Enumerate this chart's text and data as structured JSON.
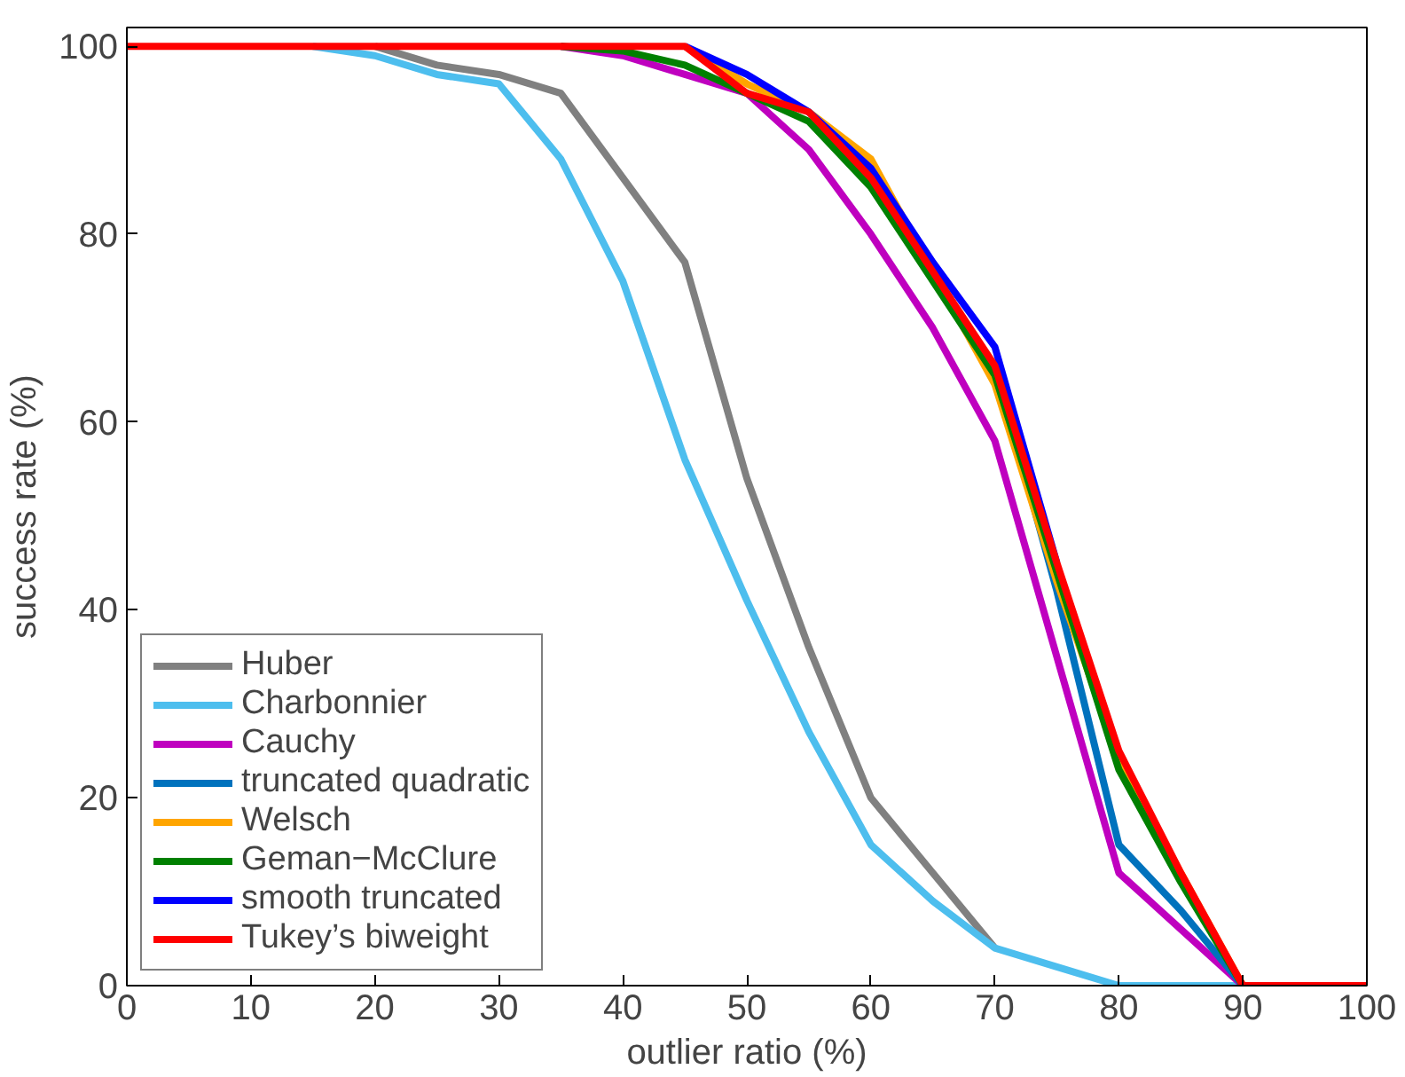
{
  "chart_data": {
    "type": "line",
    "xlabel": "outlier ratio (%)",
    "ylabel": "success rate (%)",
    "x": [
      0,
      5,
      10,
      15,
      20,
      25,
      30,
      35,
      40,
      45,
      50,
      55,
      60,
      65,
      70,
      75,
      80,
      85,
      90,
      95,
      100
    ],
    "series": [
      {
        "name": "Huber",
        "color": "#808080",
        "values": [
          null,
          null,
          null,
          null,
          100,
          98,
          97,
          95,
          86,
          77,
          54,
          36,
          20,
          12,
          4,
          null,
          null,
          null,
          null,
          null,
          null
        ]
      },
      {
        "name": "Charbonnier",
        "color": "#4dbeee",
        "values": [
          null,
          null,
          null,
          100,
          99,
          97,
          96,
          88,
          75,
          56,
          41,
          27,
          15,
          9,
          4,
          2,
          0,
          0,
          0,
          null,
          null
        ]
      },
      {
        "name": "Cauchy",
        "color": "#bf00bf",
        "values": [
          null,
          null,
          null,
          null,
          null,
          null,
          null,
          100,
          99,
          97,
          95,
          89,
          80,
          70,
          58,
          35,
          12,
          6,
          0,
          null,
          null
        ]
      },
      {
        "name": "truncated quadratic",
        "color": "#0072bd",
        "values": [
          null,
          null,
          null,
          null,
          null,
          null,
          null,
          null,
          null,
          null,
          null,
          null,
          null,
          null,
          66,
          42,
          15,
          8,
          0,
          null,
          null
        ]
      },
      {
        "name": "Welsch",
        "color": "#ffa500",
        "values": [
          null,
          null,
          null,
          null,
          null,
          null,
          null,
          null,
          null,
          100,
          96,
          93,
          88,
          76,
          64,
          43,
          24,
          12,
          0,
          null,
          null
        ]
      },
      {
        "name": "Geman−McClure",
        "color": "#008000",
        "values": [
          null,
          null,
          null,
          null,
          null,
          null,
          null,
          100,
          99.5,
          98,
          95,
          92,
          85,
          75,
          65,
          44,
          23,
          11,
          0,
          null,
          null
        ]
      },
      {
        "name": "smooth truncated",
        "color": "#0000ff",
        "values": [
          null,
          null,
          null,
          null,
          null,
          null,
          null,
          null,
          null,
          100,
          97,
          93,
          87,
          77,
          68,
          45,
          null,
          null,
          null,
          null,
          null
        ]
      },
      {
        "name": "Tukey’s biweight",
        "color": "#ff0000",
        "values": [
          100,
          100,
          100,
          100,
          100,
          100,
          100,
          100,
          100,
          100,
          95,
          93,
          86,
          76,
          66,
          45,
          25,
          12,
          0,
          0,
          0
        ]
      }
    ],
    "xlim": [
      0,
      100
    ],
    "ylim": [
      0,
      102
    ],
    "xticks": [
      0,
      10,
      20,
      30,
      40,
      50,
      60,
      70,
      80,
      90,
      100
    ],
    "yticks": [
      0,
      20,
      40,
      60,
      80,
      100
    ],
    "grid": false,
    "legend": "bottom left",
    "marker": "none",
    "line_style": "solid"
  }
}
